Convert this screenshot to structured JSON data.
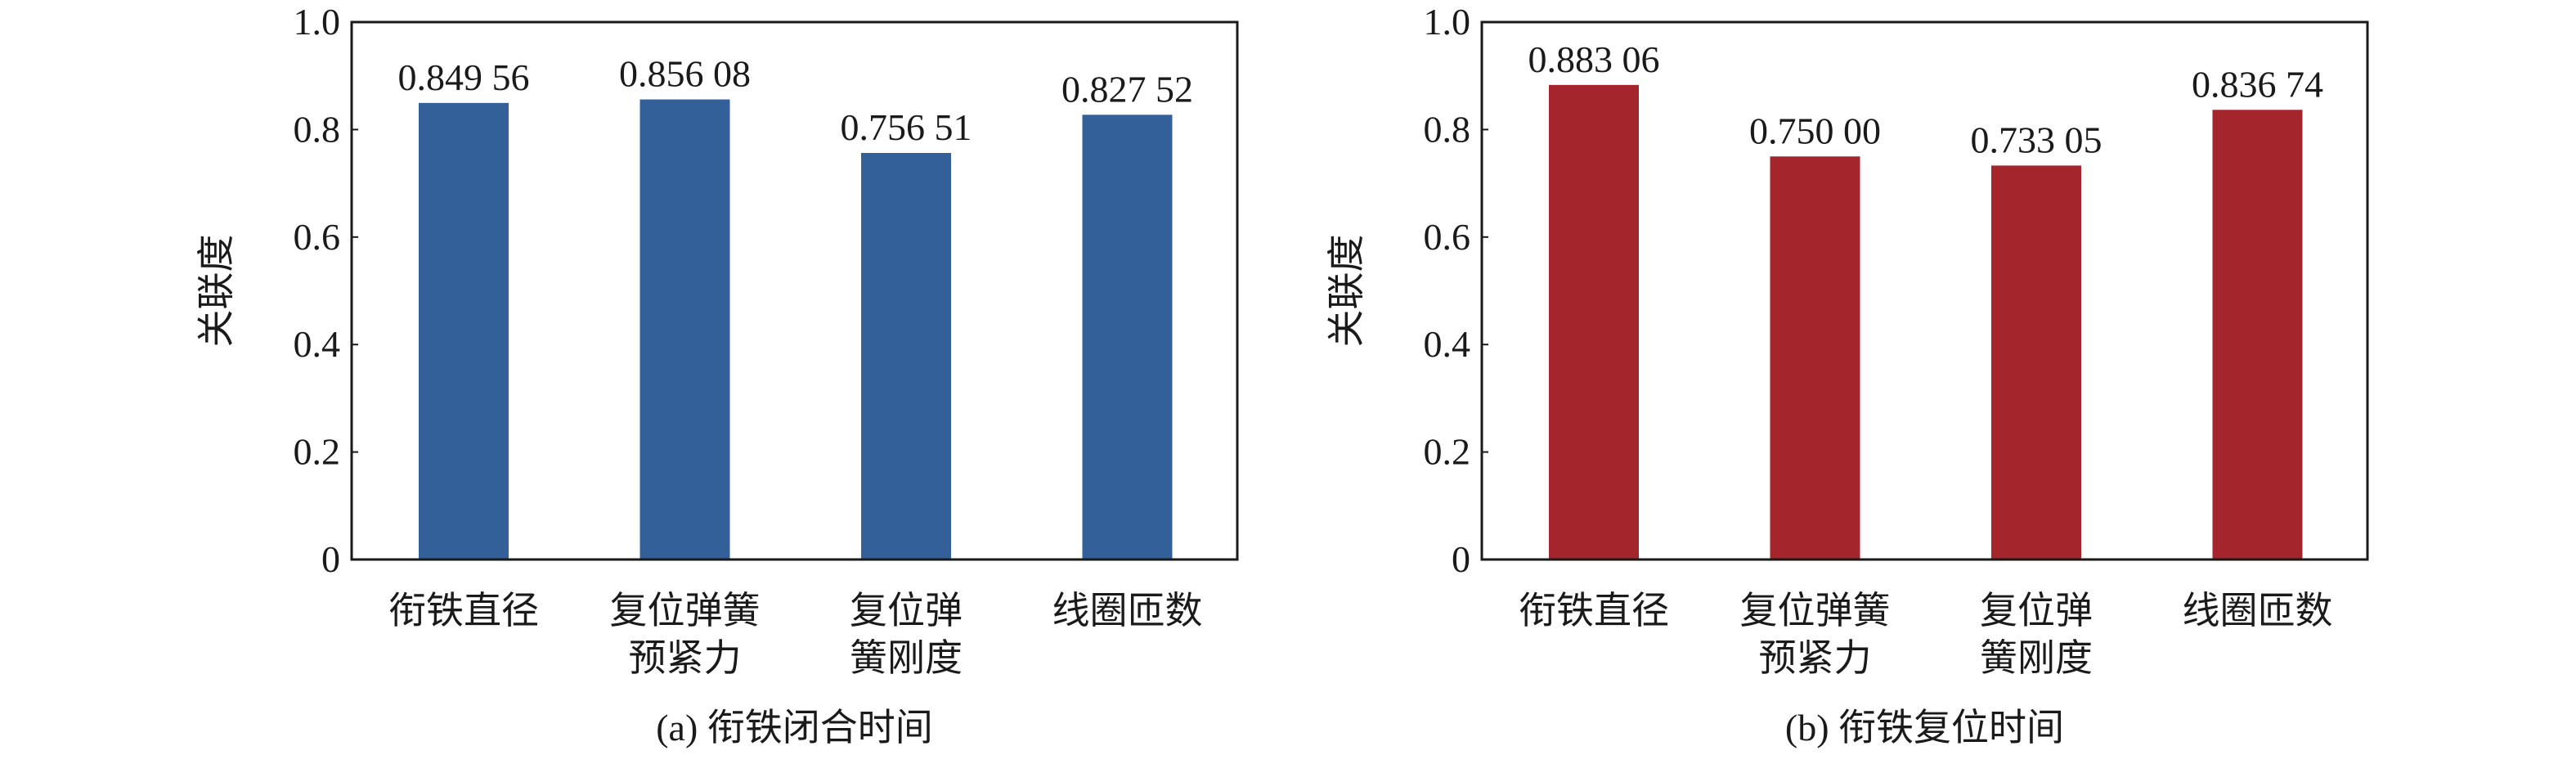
{
  "chart_data": [
    {
      "type": "bar",
      "title": "(a) 衔铁闭合时间",
      "xlabel": "",
      "ylabel": "关联度",
      "ylim": [
        0,
        1.0
      ],
      "yticks": [
        "0",
        "0.2",
        "0.4",
        "0.6",
        "0.8",
        "1.0"
      ],
      "categories": [
        [
          "衔铁直径"
        ],
        [
          "复位弹簧",
          "预紧力"
        ],
        [
          "复位弹",
          "簧刚度"
        ],
        [
          "线圈匝数"
        ]
      ],
      "values": [
        0.84956,
        0.85608,
        0.75651,
        0.82752
      ],
      "value_labels": [
        "0.849 56",
        "0.856 08",
        "0.756 51",
        "0.827 52"
      ],
      "color": "#34609a",
      "grid": false
    },
    {
      "type": "bar",
      "title": "(b) 衔铁复位时间",
      "xlabel": "",
      "ylabel": "关联度",
      "ylim": [
        0,
        1.0
      ],
      "yticks": [
        "0",
        "0.2",
        "0.4",
        "0.6",
        "0.8",
        "1.0"
      ],
      "categories": [
        [
          "衔铁直径"
        ],
        [
          "复位弹簧",
          "预紧力"
        ],
        [
          "复位弹",
          "簧刚度"
        ],
        [
          "线圈匝数"
        ]
      ],
      "values": [
        0.88306,
        0.75,
        0.73305,
        0.83674
      ],
      "value_labels": [
        "0.883 06",
        "0.750 00",
        "0.733 05",
        "0.836 74"
      ],
      "color": "#a4262c",
      "grid": false
    }
  ]
}
